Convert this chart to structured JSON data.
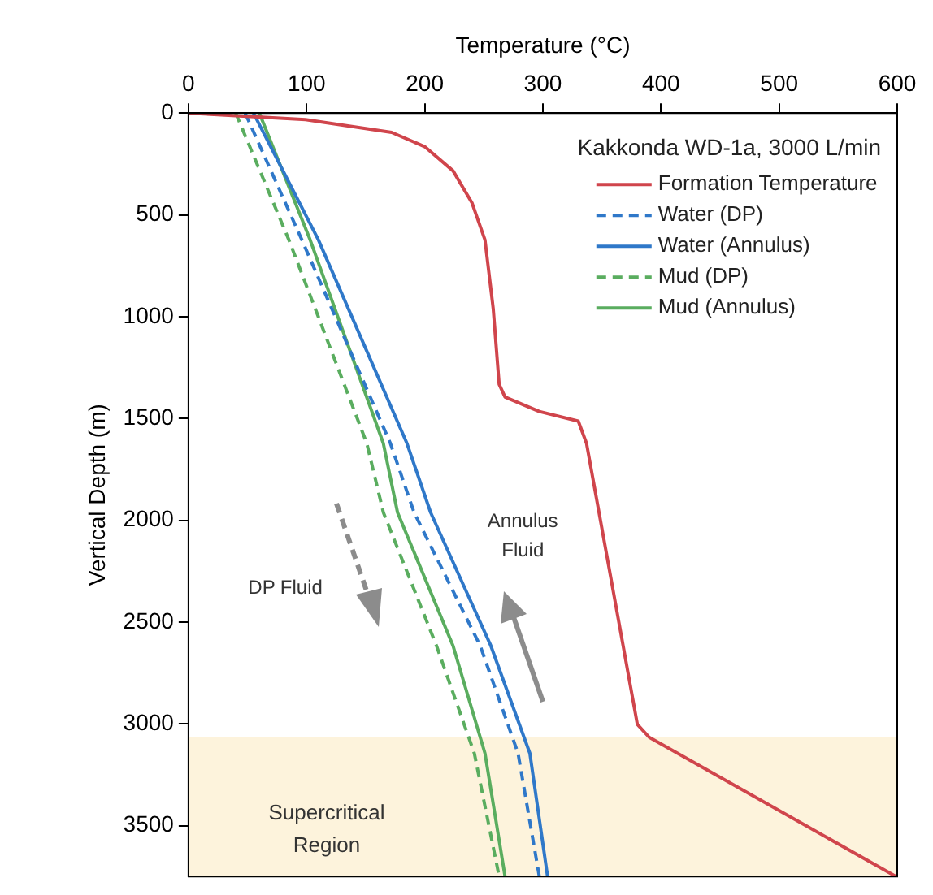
{
  "chart_data": {
    "type": "line",
    "xlabel": "Temperature (°C)",
    "ylabel": "Vertical Depth (m)",
    "legend_title": "Kakkonda WD-1a, 3000 L/min",
    "xlim": [
      0,
      600
    ],
    "xticks": [
      0,
      100,
      200,
      300,
      400,
      500,
      600
    ],
    "ylim": [
      3750,
      0
    ],
    "yticks": [
      0,
      500,
      1000,
      1500,
      2000,
      2500,
      3000,
      3500
    ],
    "grid": false,
    "legend": "top right",
    "marker": "none",
    "series": [
      {
        "name": "Formation Temperature",
        "color": "#d0454c",
        "line_style": "solid",
        "x": [
          0,
          99,
          172,
          200,
          224,
          240,
          251,
          258,
          263,
          268,
          297,
          330,
          337,
          380,
          390,
          599
        ],
        "values": [
          0,
          32,
          95,
          165,
          284,
          441,
          623,
          962,
          1332,
          1395,
          1466,
          1513,
          1623,
          3003,
          3066,
          3750
        ]
      },
      {
        "name": "Water (DP)",
        "color": "#2f78c9",
        "line_style": "dashed",
        "x": [
          48,
          96,
          171,
          191,
          247,
          279,
          297
        ],
        "values": [
          0,
          623,
          1623,
          1962,
          2617,
          3145,
          3750
        ]
      },
      {
        "name": "Water (Annulus)",
        "color": "#2f78c9",
        "line_style": "solid",
        "x": [
          55,
          110,
          185,
          205,
          256,
          289,
          304
        ],
        "values": [
          0,
          623,
          1623,
          1962,
          2617,
          3145,
          3750
        ]
      },
      {
        "name": "Mud (DP)",
        "color": "#5aad5f",
        "line_style": "dashed",
        "x": [
          40,
          85,
          151,
          165,
          210,
          242,
          263
        ],
        "values": [
          0,
          623,
          1623,
          1962,
          2617,
          3145,
          3750
        ]
      },
      {
        "name": "Mud (Annulus)",
        "color": "#5aad5f",
        "line_style": "solid",
        "x": [
          60,
          103,
          165,
          177,
          224,
          251,
          268
        ],
        "values": [
          0,
          623,
          1623,
          1962,
          2617,
          3145,
          3750
        ]
      }
    ],
    "bands": [
      {
        "axis": "y",
        "from": 3066,
        "to": 3750,
        "label": "Supercritical Region",
        "color": "#fdf3dc"
      }
    ],
    "annotations": [
      "DP Fluid",
      "Annulus Fluid"
    ]
  }
}
